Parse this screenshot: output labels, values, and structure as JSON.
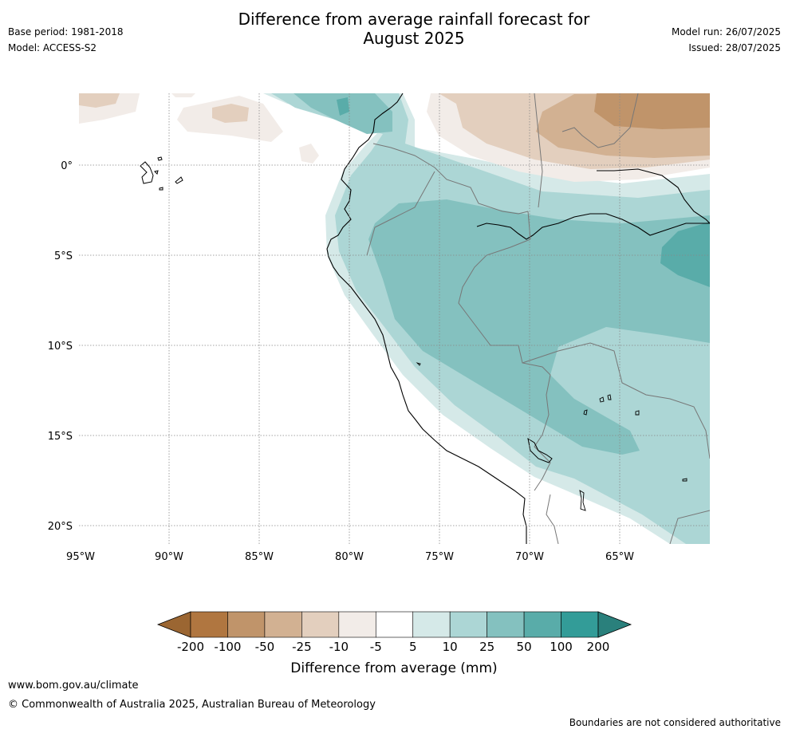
{
  "title_line1": "Difference from average rainfall forecast for",
  "title_line2": "August 2025",
  "base_period": "Base period: 1981-2018",
  "model": "Model: ACCESS-S2",
  "model_run": "Model run: 26/07/2025",
  "issued": "Issued: 28/07/2025",
  "lat_labels": [
    "0°",
    "5°S",
    "10°S",
    "15°S",
    "20°S"
  ],
  "lon_labels": [
    "95°W",
    "90°W",
    "85°W",
    "80°W",
    "75°W",
    "70°W",
    "65°W"
  ],
  "colorbar": {
    "ticks": [
      "-200",
      "-100",
      "-50",
      "-25",
      "-10",
      "-5",
      "5",
      "10",
      "25",
      "50",
      "100",
      "200"
    ],
    "colors": [
      "#9b6632",
      "#b07640",
      "#c0946a",
      "#d2b192",
      "#e3cfbe",
      "#f2ece8",
      "#ffffff",
      "#d5e9e8",
      "#acd6d5",
      "#84c1bf",
      "#59aca9",
      "#339c98",
      "#2a807c"
    ],
    "label": "Difference from average (mm)"
  },
  "website": "www.bom.gov.au/climate",
  "copyright": "© Commonwealth of Australia 2025, Australian Bureau of Meteorology",
  "disclaimer": "Boundaries are not considered authoritative"
}
